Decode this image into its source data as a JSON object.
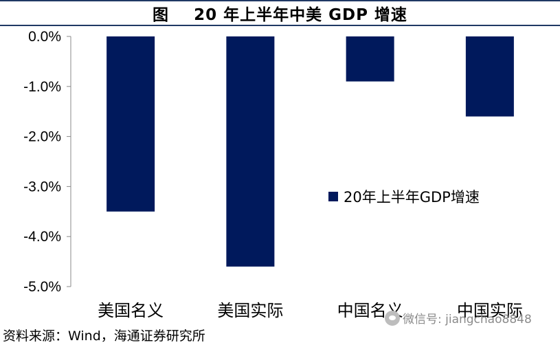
{
  "title": {
    "label": "图",
    "text": "20 年上半年中美 GDP 增速"
  },
  "chart_data": {
    "type": "bar",
    "categories": [
      "美国名义",
      "美国实际",
      "中国名义",
      "中国实际"
    ],
    "series": [
      {
        "name": "20年上半年GDP增速",
        "values": [
          -3.5,
          -4.6,
          -0.9,
          -1.6
        ]
      }
    ],
    "ylim": [
      -5.0,
      0.0
    ],
    "yticks": [
      "0.0%",
      "-1.0%",
      "-2.0%",
      "-3.0%",
      "-4.0%",
      "-5.0%"
    ],
    "ytick_values": [
      0,
      -1,
      -2,
      -3,
      -4,
      -5
    ],
    "bar_color": "#00195c",
    "grid": false,
    "legend_position": "right"
  },
  "source": "资料来源：Wind，海通证券研究所",
  "watermark": "微信号: jiangchao8848"
}
